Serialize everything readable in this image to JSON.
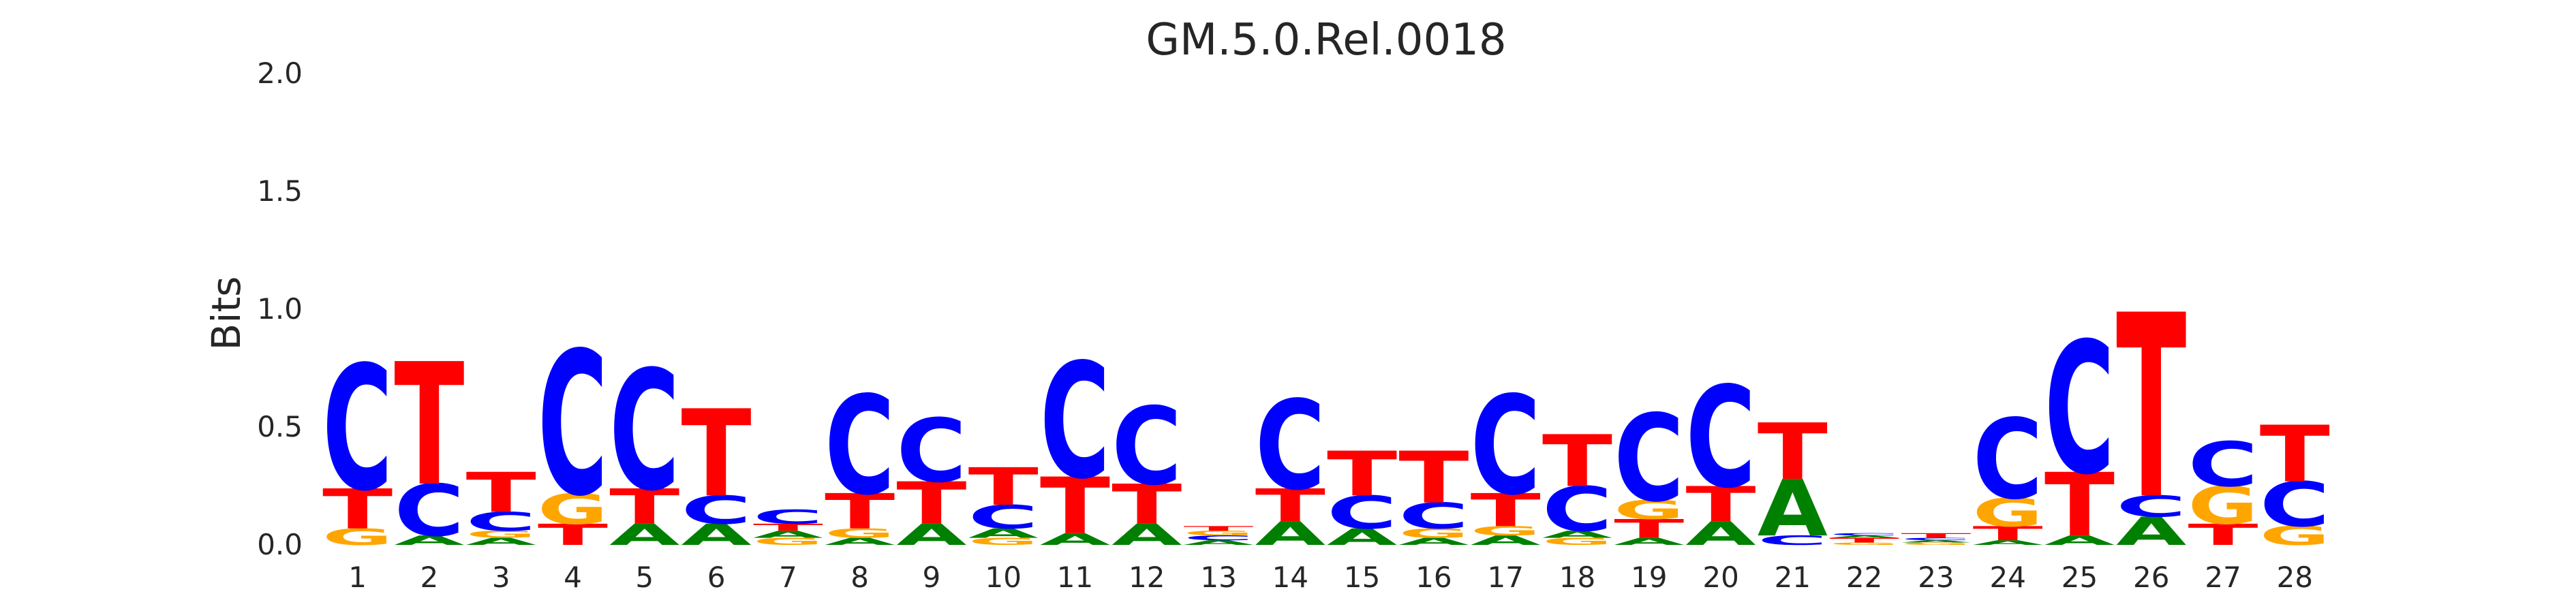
{
  "chart_data": {
    "type": "sequence-logo",
    "title": "GM.5.0.Rel.0018",
    "ylabel": "Bits",
    "xlabel": "",
    "ylim": [
      0,
      2.0
    ],
    "yticks": [
      0.0,
      0.5,
      1.0,
      1.5,
      2.0
    ],
    "ytick_labels": [
      "0.0",
      "0.5",
      "1.0",
      "1.5",
      "2.0"
    ],
    "grid": false,
    "colors": {
      "A": "#008000",
      "C": "#0000ff",
      "G": "#ffa500",
      "T": "#ff0000"
    },
    "positions": [
      {
        "x": "1",
        "letters": [
          {
            "base": "G",
            "bits": 0.07
          },
          {
            "base": "T",
            "bits": 0.17
          },
          {
            "base": "C",
            "bits": 0.53
          }
        ]
      },
      {
        "x": "2",
        "letters": [
          {
            "base": "A",
            "bits": 0.04
          },
          {
            "base": "C",
            "bits": 0.22
          },
          {
            "base": "T",
            "bits": 0.52
          }
        ]
      },
      {
        "x": "3",
        "letters": [
          {
            "base": "A",
            "bits": 0.03
          },
          {
            "base": "G",
            "bits": 0.03
          },
          {
            "base": "C",
            "bits": 0.08
          },
          {
            "base": "T",
            "bits": 0.17
          }
        ]
      },
      {
        "x": "4",
        "letters": [
          {
            "base": "T",
            "bits": 0.09
          },
          {
            "base": "G",
            "bits": 0.13
          },
          {
            "base": "C",
            "bits": 0.61
          }
        ]
      },
      {
        "x": "5",
        "letters": [
          {
            "base": "A",
            "bits": 0.09
          },
          {
            "base": "T",
            "bits": 0.15
          },
          {
            "base": "C",
            "bits": 0.51
          }
        ]
      },
      {
        "x": "6",
        "letters": [
          {
            "base": "A",
            "bits": 0.09
          },
          {
            "base": "C",
            "bits": 0.12
          },
          {
            "base": "T",
            "bits": 0.37
          }
        ]
      },
      {
        "x": "7",
        "letters": [
          {
            "base": "G",
            "bits": 0.03
          },
          {
            "base": "A",
            "bits": 0.03
          },
          {
            "base": "T",
            "bits": 0.03
          },
          {
            "base": "C",
            "bits": 0.06
          }
        ]
      },
      {
        "x": "8",
        "letters": [
          {
            "base": "A",
            "bits": 0.03
          },
          {
            "base": "G",
            "bits": 0.04
          },
          {
            "base": "T",
            "bits": 0.15
          },
          {
            "base": "C",
            "bits": 0.42
          }
        ]
      },
      {
        "x": "9",
        "letters": [
          {
            "base": "A",
            "bits": 0.09
          },
          {
            "base": "T",
            "bits": 0.18
          },
          {
            "base": "C",
            "bits": 0.27
          }
        ]
      },
      {
        "x": "10",
        "letters": [
          {
            "base": "G",
            "bits": 0.03
          },
          {
            "base": "A",
            "bits": 0.04
          },
          {
            "base": "C",
            "bits": 0.1
          },
          {
            "base": "T",
            "bits": 0.16
          }
        ]
      },
      {
        "x": "11",
        "letters": [
          {
            "base": "A",
            "bits": 0.05
          },
          {
            "base": "T",
            "bits": 0.24
          },
          {
            "base": "C",
            "bits": 0.49
          }
        ]
      },
      {
        "x": "12",
        "letters": [
          {
            "base": "A",
            "bits": 0.09
          },
          {
            "base": "T",
            "bits": 0.17
          },
          {
            "base": "C",
            "bits": 0.33
          }
        ]
      },
      {
        "x": "13",
        "letters": [
          {
            "base": "A",
            "bits": 0.02
          },
          {
            "base": "C",
            "bits": 0.02
          },
          {
            "base": "G",
            "bits": 0.02
          },
          {
            "base": "T",
            "bits": 0.02
          }
        ]
      },
      {
        "x": "14",
        "letters": [
          {
            "base": "A",
            "bits": 0.1
          },
          {
            "base": "T",
            "bits": 0.14
          },
          {
            "base": "C",
            "bits": 0.38
          }
        ]
      },
      {
        "x": "15",
        "letters": [
          {
            "base": "A",
            "bits": 0.07
          },
          {
            "base": "C",
            "bits": 0.14
          },
          {
            "base": "T",
            "bits": 0.19
          }
        ]
      },
      {
        "x": "16",
        "letters": [
          {
            "base": "A",
            "bits": 0.03
          },
          {
            "base": "G",
            "bits": 0.04
          },
          {
            "base": "C",
            "bits": 0.11
          },
          {
            "base": "T",
            "bits": 0.22
          }
        ]
      },
      {
        "x": "17",
        "letters": [
          {
            "base": "A",
            "bits": 0.04
          },
          {
            "base": "G",
            "bits": 0.04
          },
          {
            "base": "T",
            "bits": 0.14
          },
          {
            "base": "C",
            "bits": 0.42
          }
        ]
      },
      {
        "x": "18",
        "letters": [
          {
            "base": "G",
            "bits": 0.03
          },
          {
            "base": "A",
            "bits": 0.03
          },
          {
            "base": "C",
            "bits": 0.19
          },
          {
            "base": "T",
            "bits": 0.22
          }
        ]
      },
      {
        "x": "19",
        "letters": [
          {
            "base": "A",
            "bits": 0.03
          },
          {
            "base": "T",
            "bits": 0.08
          },
          {
            "base": "G",
            "bits": 0.08
          },
          {
            "base": "C",
            "bits": 0.37
          }
        ]
      },
      {
        "x": "20",
        "letters": [
          {
            "base": "A",
            "bits": 0.1
          },
          {
            "base": "T",
            "bits": 0.15
          },
          {
            "base": "C",
            "bits": 0.43
          }
        ]
      },
      {
        "x": "21",
        "letters": [
          {
            "base": "C",
            "bits": 0.04
          },
          {
            "base": "A",
            "bits": 0.24
          },
          {
            "base": "T",
            "bits": 0.24
          }
        ]
      },
      {
        "x": "22",
        "letters": [
          {
            "base": "G",
            "bits": 0.01
          },
          {
            "base": "T",
            "bits": 0.02
          },
          {
            "base": "A",
            "bits": 0.01
          },
          {
            "base": "C",
            "bits": 0.01
          }
        ]
      },
      {
        "x": "23",
        "letters": [
          {
            "base": "G",
            "bits": 0.01
          },
          {
            "base": "A",
            "bits": 0.01
          },
          {
            "base": "C",
            "bits": 0.01
          },
          {
            "base": "T",
            "bits": 0.02
          }
        ]
      },
      {
        "x": "24",
        "letters": [
          {
            "base": "A",
            "bits": 0.02
          },
          {
            "base": "T",
            "bits": 0.06
          },
          {
            "base": "G",
            "bits": 0.12
          },
          {
            "base": "C",
            "bits": 0.34
          }
        ]
      },
      {
        "x": "25",
        "letters": [
          {
            "base": "A",
            "bits": 0.04
          },
          {
            "base": "T",
            "bits": 0.27
          },
          {
            "base": "C",
            "bits": 0.56
          }
        ]
      },
      {
        "x": "26",
        "letters": [
          {
            "base": "A",
            "bits": 0.12
          },
          {
            "base": "C",
            "bits": 0.09
          },
          {
            "base": "T",
            "bits": 0.78
          }
        ]
      },
      {
        "x": "27",
        "letters": [
          {
            "base": "T",
            "bits": 0.09
          },
          {
            "base": "G",
            "bits": 0.16
          },
          {
            "base": "C",
            "bits": 0.19
          }
        ]
      },
      {
        "x": "28",
        "letters": [
          {
            "base": "G",
            "bits": 0.08
          },
          {
            "base": "C",
            "bits": 0.19
          },
          {
            "base": "T",
            "bits": 0.24
          }
        ]
      }
    ]
  }
}
